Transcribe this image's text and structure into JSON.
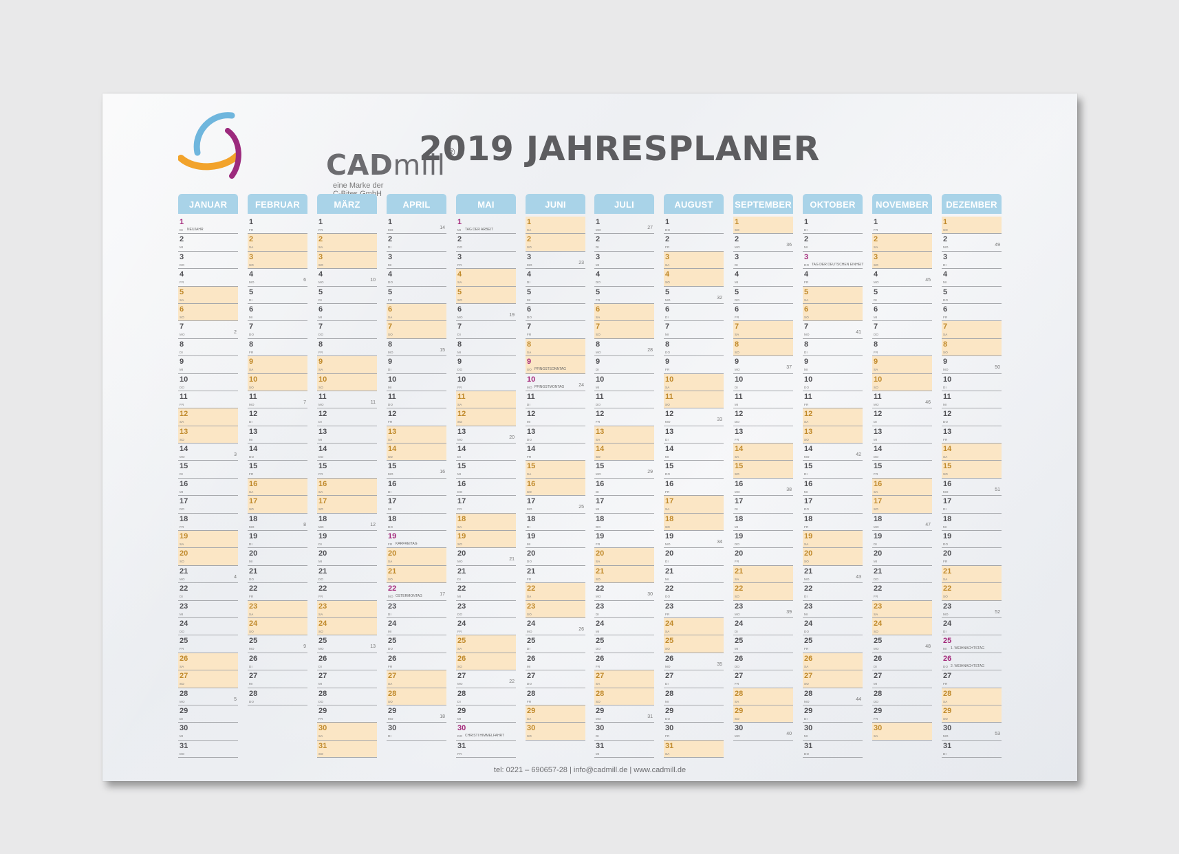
{
  "logo": {
    "name_bold": "CAD",
    "name_light": "mill",
    "registered": "®",
    "tagline": "eine Marke der C-Bites GmbH"
  },
  "title": "2019 JAHRESPLANER",
  "footer": "tel: 0221 – 690657-28 | info@cadmill.de | www.cadmill.de",
  "weekday_labels": [
    "MO",
    "DI",
    "MI",
    "DO",
    "FR",
    "SA",
    "SO"
  ],
  "colors": {
    "header": "#a9d3e8",
    "weekend": "#fbe6c5",
    "holiday": "#a3287a",
    "rule": "#a5a7ab"
  },
  "months": [
    {
      "name": "JANUAR",
      "days": 31,
      "start": 1,
      "holidays": {
        "1": "NEUJAHR"
      },
      "kw": {
        "7": "2",
        "14": "3",
        "21": "4",
        "28": "5"
      }
    },
    {
      "name": "FEBRUAR",
      "days": 28,
      "start": 4,
      "holidays": {},
      "kw": {
        "4": "6",
        "11": "7",
        "18": "8",
        "25": "9"
      }
    },
    {
      "name": "MÄRZ",
      "days": 31,
      "start": 4,
      "holidays": {},
      "kw": {
        "4": "10",
        "11": "11",
        "18": "12",
        "25": "13"
      }
    },
    {
      "name": "APRIL",
      "days": 30,
      "start": 0,
      "holidays": {
        "19": "KARFREITAG",
        "22": "OSTERMONTAG"
      },
      "kw": {
        "1": "14",
        "8": "15",
        "15": "16",
        "22": "17",
        "29": "18"
      }
    },
    {
      "name": "MAI",
      "days": 31,
      "start": 2,
      "holidays": {
        "1": "TAG DER ARBEIT",
        "30": "CHRISTI HIMMELFAHRT"
      },
      "kw": {
        "6": "19",
        "13": "20",
        "20": "21",
        "27": "22"
      }
    },
    {
      "name": "JUNI",
      "days": 30,
      "start": 5,
      "holidays": {
        "9": "PFINGSTSONNTAG",
        "10": "PFINGSTMONTAG"
      },
      "kw": {
        "3": "23",
        "10": "24",
        "17": "25",
        "24": "26"
      }
    },
    {
      "name": "JULI",
      "days": 31,
      "start": 0,
      "holidays": {},
      "kw": {
        "1": "27",
        "8": "28",
        "15": "29",
        "22": "30",
        "29": "31"
      }
    },
    {
      "name": "AUGUST",
      "days": 31,
      "start": 3,
      "holidays": {},
      "kw": {
        "5": "32",
        "12": "33",
        "19": "34",
        "26": "35"
      }
    },
    {
      "name": "SEPTEMBER",
      "days": 30,
      "start": 6,
      "holidays": {},
      "kw": {
        "2": "36",
        "9": "37",
        "16": "38",
        "23": "39",
        "30": "40"
      }
    },
    {
      "name": "OKTOBER",
      "days": 31,
      "start": 1,
      "holidays": {
        "3": "TAG DER DEUTSCHEN EINHEIT"
      },
      "kw": {
        "7": "41",
        "14": "42",
        "21": "43",
        "28": "44"
      }
    },
    {
      "name": "NOVEMBER",
      "days": 30,
      "start": 4,
      "holidays": {},
      "kw": {
        "4": "45",
        "11": "46",
        "18": "47",
        "25": "48"
      }
    },
    {
      "name": "DEZEMBER",
      "days": 31,
      "start": 6,
      "holidays": {
        "25": "1. WEIHNACHTSTAG",
        "26": "2. WEIHNACHTSTAG"
      },
      "kw": {
        "2": "49",
        "9": "50",
        "16": "51",
        "23": "52",
        "30": "53"
      }
    }
  ]
}
